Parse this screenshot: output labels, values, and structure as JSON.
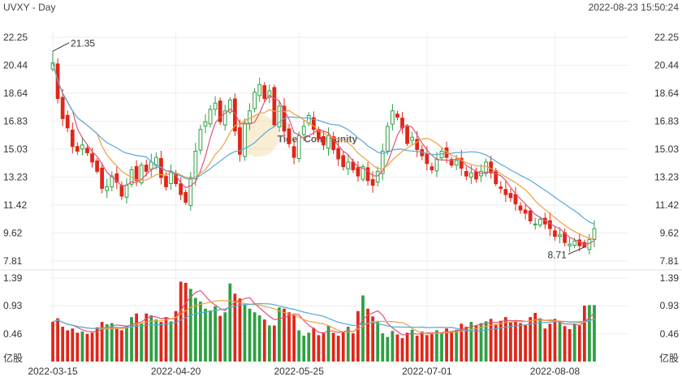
{
  "header": {
    "title": "UVXY - Day",
    "timestamp": "2022-08-23 15:50:24"
  },
  "watermark": {
    "text": "Tiger Community"
  },
  "colors": {
    "up": "#2ea043",
    "down": "#e02618",
    "ma_short": "#e0547a",
    "ma_mid": "#f0a040",
    "ma_long": "#56a9d8",
    "grid": "#eeeeee"
  },
  "chart_data": [
    {
      "type": "candlestick",
      "title": "UVXY - Day",
      "y_ticks": [
        "22.25",
        "20.44",
        "18.64",
        "16.83",
        "15.03",
        "13.23",
        "11.42",
        "9.62",
        "7.81"
      ],
      "ylim": [
        7.81,
        22.25
      ],
      "x_ticks": [
        "2022-03-15",
        "2022-04-20",
        "2022-05-25",
        "2022-07-01",
        "2022-08-08"
      ],
      "annotations": [
        {
          "label": "21.35",
          "value": 21.35,
          "kind": "high"
        },
        {
          "label": "8.71",
          "value": 8.71,
          "kind": "low"
        }
      ],
      "closes": [
        20.6,
        18.3,
        17.0,
        16.4,
        15.2,
        14.9,
        15.3,
        14.8,
        14.2,
        13.6,
        12.5,
        12.6,
        13.3,
        12.9,
        12.0,
        12.7,
        13.7,
        13.0,
        14.0,
        13.6,
        14.2,
        14.5,
        13.2,
        12.6,
        13.6,
        12.8,
        12.1,
        11.6,
        13.2,
        14.9,
        16.3,
        16.8,
        17.6,
        18.0,
        16.8,
        17.5,
        18.2,
        16.2,
        14.7,
        16.7,
        17.5,
        18.7,
        19.2,
        18.3,
        18.8,
        16.6,
        17.8,
        16.2,
        15.4,
        14.5,
        15.9,
        16.5,
        17.2,
        16.3,
        15.7,
        15.3,
        15.9,
        15.0,
        14.4,
        13.9,
        14.2,
        13.7,
        13.3,
        13.9,
        13.0,
        12.7,
        13.6,
        14.9,
        16.5,
        17.5,
        17.1,
        16.4,
        15.4,
        15.8,
        15.0,
        14.6,
        14.1,
        13.7,
        14.4,
        14.9,
        14.5,
        14.0,
        14.3,
        13.8,
        13.3,
        13.5,
        13.1,
        13.6,
        14.2,
        13.5,
        12.8,
        12.5,
        12.1,
        11.9,
        11.5,
        11.1,
        10.9,
        10.4,
        10.2,
        10.5,
        10.2,
        9.9,
        9.4,
        9.5,
        9.0,
        8.9,
        9.1,
        8.8,
        8.7,
        9.2,
        9.9
      ],
      "volume": {
        "unit": "亿股",
        "y_ticks": [
          "1.39",
          "0.93",
          "0.46"
        ],
        "ylim": [
          0,
          1.39
        ],
        "values": [
          0.66,
          0.72,
          0.58,
          0.52,
          0.55,
          0.48,
          0.5,
          0.46,
          0.48,
          0.57,
          0.66,
          0.62,
          0.64,
          0.56,
          0.52,
          0.6,
          0.74,
          0.8,
          0.64,
          0.8,
          0.77,
          0.7,
          0.66,
          0.74,
          0.67,
          0.84,
          1.33,
          1.31,
          1.21,
          1.06,
          1.0,
          0.88,
          0.85,
          0.92,
          0.76,
          0.82,
          1.3,
          1.13,
          1.05,
          0.95,
          0.88,
          0.82,
          0.77,
          0.7,
          0.6,
          0.6,
          0.9,
          0.88,
          0.82,
          0.77,
          0.52,
          0.43,
          0.48,
          0.56,
          0.44,
          0.47,
          0.6,
          0.48,
          0.43,
          0.5,
          0.58,
          0.47,
          0.84,
          1.1,
          0.88,
          0.75,
          0.66,
          0.47,
          0.41,
          0.51,
          0.45,
          0.39,
          0.48,
          0.53,
          0.43,
          0.5,
          0.44,
          0.48,
          0.52,
          0.47,
          0.55,
          0.49,
          0.53,
          0.63,
          0.58,
          0.66,
          0.6,
          0.64,
          0.67,
          0.71,
          0.62,
          0.68,
          0.74,
          0.66,
          0.69,
          0.64,
          0.61,
          0.74,
          0.81,
          0.72,
          0.55,
          0.63,
          0.71,
          0.65,
          0.59,
          0.54,
          0.63,
          0.6,
          0.93,
          0.94,
          0.94
        ]
      }
    }
  ]
}
